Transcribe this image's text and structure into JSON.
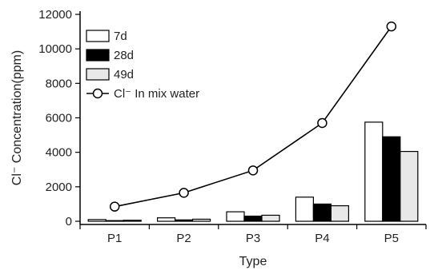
{
  "chart_data": {
    "type": "bar",
    "categories": [
      "P1",
      "P2",
      "P3",
      "P4",
      "P5"
    ],
    "series": [
      {
        "name": "7d",
        "values": [
          100,
          200,
          550,
          1400,
          5750
        ],
        "fill": "#ffffff"
      },
      {
        "name": "28d",
        "values": [
          40,
          80,
          300,
          1000,
          4900
        ],
        "fill": "#000000"
      },
      {
        "name": "49d",
        "values": [
          60,
          120,
          350,
          900,
          4050
        ],
        "fill": "#e8e8e8"
      }
    ],
    "line_series": {
      "name": "Cl⁻ In mix water",
      "values": [
        850,
        1650,
        2950,
        5700,
        11300
      ],
      "marker": "open-circle"
    },
    "xlabel": "Type",
    "ylabel": "Cl⁻ Concentration(ppm)",
    "ylim": [
      0,
      12000
    ],
    "yticks": [
      0,
      2000,
      4000,
      6000,
      8000,
      10000,
      12000
    ],
    "ytick_labels": [
      "0",
      "2000",
      "4000",
      "6000",
      "8000",
      "10000",
      "12000"
    ],
    "grid": false,
    "legend_position": "top-left"
  }
}
